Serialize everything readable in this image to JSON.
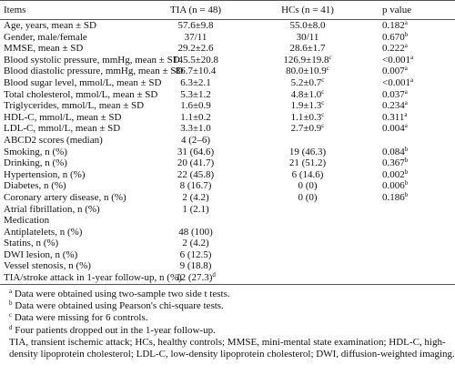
{
  "table": {
    "header": [
      "Items",
      "TIA (n = 48)",
      "HCs (n = 41)",
      "p value"
    ],
    "rows": [
      {
        "item": "Age, years, mean ± SD",
        "tia": "57.6±9.8",
        "hcs": "55.0±8.0",
        "p": {
          "text": "0.182",
          "sup": "a"
        }
      },
      {
        "item": "Gender, male/female",
        "tia": "37/11",
        "hcs": "30/11",
        "p": {
          "text": "0.670",
          "sup": "b"
        }
      },
      {
        "item": "MMSE, mean ± SD",
        "tia": "29.2±2.6",
        "hcs": "28.6±1.7",
        "p": {
          "text": "0.222",
          "sup": "a"
        }
      },
      {
        "item": "Blood systolic pressure, mmHg, mean ± SD",
        "tia": "145.5±20.8",
        "hcs": {
          "text": "126.9±19.8",
          "sup": "c"
        },
        "p": {
          "text": "<0.001",
          "sup": "a"
        }
      },
      {
        "item": "Blood diastolic pressure, mmHg, mean ± SD",
        "tia": "86.7±10.4",
        "hcs": {
          "text": "80.0±10.9",
          "sup": "c"
        },
        "p": {
          "text": "0.007",
          "sup": "a"
        }
      },
      {
        "item": "Blood sugar level, mmol/L, mean ± SD",
        "tia": "6.3±2.1",
        "hcs": {
          "text": "5.2±0.7",
          "sup": "c"
        },
        "p": {
          "text": "<0.001",
          "sup": "a"
        }
      },
      {
        "item": "Total cholesterol, mmol/L, mean ± SD",
        "tia": "5.3±1.2",
        "hcs": {
          "text": "4.8±1.0",
          "sup": "c"
        },
        "p": {
          "text": "0.037",
          "sup": "a"
        }
      },
      {
        "item": "Triglycerides, mmol/L, mean ± SD",
        "tia": "1.6±0.9",
        "hcs": {
          "text": "1.9±1.3",
          "sup": "c"
        },
        "p": {
          "text": "0.234",
          "sup": "a"
        }
      },
      {
        "item": "HDL-C, mmol/L, mean ± SD",
        "tia": "1.1±0.2",
        "hcs": {
          "text": "1.1±0.3",
          "sup": "c"
        },
        "p": {
          "text": "0.311",
          "sup": "a"
        }
      },
      {
        "item": "LDL-C, mmol/L, mean ± SD",
        "tia": "3.3±1.0",
        "hcs": {
          "text": "2.7±0.9",
          "sup": "c"
        },
        "p": {
          "text": "0.004",
          "sup": "a"
        }
      },
      {
        "item": "ABCD2 scores (median)",
        "tia": "4 (2–6)"
      },
      {
        "item": "Smoking, n (%)",
        "tia": "31 (64.6)",
        "hcs": "19 (46.3)",
        "p": {
          "text": "0.084",
          "sup": "b"
        }
      },
      {
        "item": "Drinking, n (%)",
        "tia": "20 (41.7)",
        "hcs": "21 (51.2)",
        "p": {
          "text": "0.367",
          "sup": "b"
        }
      },
      {
        "item": "Hypertension, n (%)",
        "tia": "22 (45.8)",
        "hcs": "6 (14.6)",
        "p": {
          "text": "0.002",
          "sup": "b"
        }
      },
      {
        "item": "Diabetes, n (%)",
        "tia": "8 (16.7)",
        "hcs": "0 (0)",
        "p": {
          "text": "0.006",
          "sup": "b"
        }
      },
      {
        "item": "Coronary artery disease, n (%)",
        "tia": "2 (4.2)",
        "hcs": "0 (0)",
        "p": {
          "text": "0.186",
          "sup": "b"
        }
      },
      {
        "item": "Atrial fibrillation, n (%)",
        "tia": "1 (2.1)"
      },
      {
        "item": "Medication"
      },
      {
        "item": "Antiplatelets, n (%)",
        "tia": "48 (100)"
      },
      {
        "item": "Statins, n (%)",
        "tia": "2 (4.2)"
      },
      {
        "item": "DWI lesion, n (%)",
        "tia": "6 (12.5)"
      },
      {
        "item": "Vessel stenosis, n (%)",
        "tia": "9 (18.8)"
      },
      {
        "item": "TIA/stroke attack in 1-year follow-up, n (%)",
        "tia": {
          "text": "12 (27.3)",
          "sup": "d"
        }
      }
    ]
  },
  "footnotes": [
    {
      "sup": "a",
      "text": "Data were obtained using two-sample two side t tests."
    },
    {
      "sup": "b",
      "text": "Data were obtained using Pearson's chi-square tests."
    },
    {
      "sup": "c",
      "text": "Data were missing for 6 controls."
    },
    {
      "sup": "d",
      "text": "Four patients dropped out in the 1-year follow-up."
    }
  ],
  "abbreviations": "TIA, transient ischemic attack; HCs, healthy controls; MMSE, mini-mental state examination; HDL-C, high-density lipoprotein cholesterol; LDL-C, low-density lipoprotein cholesterol; DWI, diffusion-weighted imaging."
}
